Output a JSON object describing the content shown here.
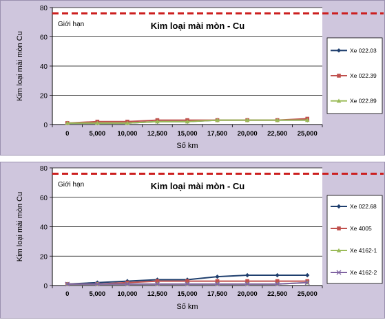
{
  "colors": {
    "background": "#cfc6dd",
    "limit_line": "#cc1f1f",
    "series_1": "#1f3f6e",
    "series_2": "#c0504d",
    "series_3": "#9bbb59",
    "series_4": "#8064a2"
  },
  "chart_data": [
    {
      "type": "line",
      "title": "Kim loại mài mòn - Cu",
      "xlabel": "Số km",
      "ylabel": "Kim loại mài mòn Cu",
      "limit_label": "Giới hạn",
      "limit_value": 76,
      "ylim": [
        0,
        80
      ],
      "yticks": [
        "0",
        "20",
        "40",
        "60",
        "80"
      ],
      "categories": [
        "0",
        "5,000",
        "10,000",
        "12,500",
        "15,000",
        "17,500",
        "20,000",
        "22,500",
        "25,000"
      ],
      "legend_position": "right",
      "grid": true,
      "series": [
        {
          "name": "Xe 022.03",
          "marker": "diamond",
          "color": "#1f3f6e",
          "values": [
            1,
            1,
            1,
            2,
            2,
            3,
            3,
            3,
            3
          ]
        },
        {
          "name": "Xe 022.39",
          "marker": "square",
          "color": "#c0504d",
          "values": [
            1,
            2,
            2,
            3,
            3,
            3,
            3,
            3,
            4
          ]
        },
        {
          "name": "Xe 022.89",
          "marker": "triangle",
          "color": "#9bbb59",
          "values": [
            1,
            1,
            1,
            2,
            2,
            3,
            3,
            3,
            3
          ]
        }
      ]
    },
    {
      "type": "line",
      "title": "Kim loại mài mòn - Cu",
      "xlabel": "Số km",
      "ylabel": "Kim loại mài mòn Cu",
      "limit_label": "Giới hạn",
      "limit_value": 76,
      "ylim": [
        0,
        80
      ],
      "yticks": [
        "0",
        "20",
        "40",
        "60",
        "80"
      ],
      "categories": [
        "0",
        "5,000",
        "10,000",
        "12,500",
        "15,000",
        "17,500",
        "20,000",
        "22,500",
        "25,000"
      ],
      "legend_position": "right",
      "grid": true,
      "series": [
        {
          "name": "Xe 022.68",
          "marker": "diamond",
          "color": "#1f3f6e",
          "values": [
            1,
            2,
            3,
            4,
            4,
            6,
            7,
            7,
            7
          ]
        },
        {
          "name": "Xe 4005",
          "marker": "square",
          "color": "#c0504d",
          "values": [
            1,
            1,
            2,
            3,
            3,
            3,
            3,
            3,
            3
          ]
        },
        {
          "name": "Xe 4162-1",
          "marker": "triangle",
          "color": "#9bbb59",
          "values": [
            1,
            1,
            1,
            1,
            1,
            1,
            1,
            1,
            2
          ]
        },
        {
          "name": "Xe 4162-2",
          "marker": "cross",
          "color": "#8064a2",
          "values": [
            1,
            1,
            1,
            1,
            1,
            1,
            1,
            1,
            2
          ]
        }
      ]
    }
  ]
}
